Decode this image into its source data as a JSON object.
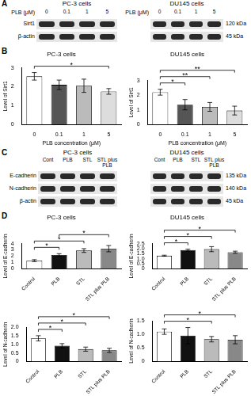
{
  "panel_labels": [
    "A",
    "B",
    "C",
    "D"
  ],
  "blots": [
    {
      "groups": [
        {
          "title": "PC-3 cells",
          "lane_header": "PLB (μM)",
          "lanes": [
            "0",
            "0.1",
            "1",
            "5"
          ],
          "rows": [
            "Sirt1",
            "β-actin"
          ]
        },
        {
          "title": "DU145 cells",
          "lane_header": "PLB (μM)",
          "lanes": [
            "0",
            "0.1",
            "1",
            "5"
          ],
          "sizes": [
            "120 kDa",
            "45 kDa"
          ]
        }
      ]
    },
    {
      "groups": [
        {
          "title": "PC-3 cells",
          "lanes": [
            "Cont",
            "PLB",
            "STL",
            "STL plus PLB"
          ],
          "rows": [
            "E-cadherin",
            "N-cadherin",
            "β-actin"
          ]
        },
        {
          "title": "DU145 cells",
          "lanes": [
            "Cont",
            "PLB",
            "STL",
            "STL plus PLB"
          ],
          "sizes": [
            "135 kDa",
            "140 kDa",
            "45 kDa"
          ]
        }
      ]
    }
  ],
  "chart_data": [
    {
      "type": "bar",
      "title": "PC-3 cells",
      "x_label": "PLB concentration (μM)",
      "y_label": "Level of Sirt1",
      "categories": [
        "0",
        "0.1",
        "1",
        "5"
      ],
      "values": [
        2.55,
        2.1,
        2.05,
        1.75
      ],
      "errors": [
        0.2,
        0.25,
        0.35,
        0.15
      ],
      "colors": [
        "#ffffff",
        "#555555",
        "#bbbbbb",
        "#dddddd"
      ],
      "ylim": [
        0,
        3
      ],
      "yticks": [
        0,
        1,
        2,
        3
      ],
      "significance": [
        {
          "pair": [
            0,
            3
          ],
          "label": "*"
        }
      ]
    },
    {
      "type": "bar",
      "title": "DU145 cells",
      "x_label": "PLB concentration (μM)",
      "y_label": "Level of Sirt1",
      "categories": [
        "0",
        "0.1",
        "1",
        "5"
      ],
      "values": [
        2.2,
        1.35,
        1.2,
        0.95
      ],
      "errors": [
        0.2,
        0.35,
        0.3,
        0.3
      ],
      "colors": [
        "#ffffff",
        "#555555",
        "#bbbbbb",
        "#dddddd"
      ],
      "ylim": [
        0,
        3
      ],
      "yticks": [
        0,
        1,
        2,
        3
      ],
      "significance": [
        {
          "pair": [
            0,
            1
          ],
          "label": "*"
        },
        {
          "pair": [
            0,
            2
          ],
          "label": "**"
        },
        {
          "pair": [
            0,
            3
          ],
          "label": "**"
        }
      ]
    },
    {
      "type": "bar",
      "title": "PC-3 cells",
      "y_label": "Level of E-cadherin",
      "categories": [
        "Control",
        "PLB",
        "STL",
        "STL plus PLB"
      ],
      "values": [
        1.3,
        2.2,
        2.9,
        3.2
      ],
      "errors": [
        0.15,
        0.2,
        0.3,
        0.5
      ],
      "colors": [
        "#ffffff",
        "#111111",
        "#bbbbbb",
        "#888888"
      ],
      "ylim": [
        0,
        4
      ],
      "yticks": [
        0,
        1,
        2,
        3,
        4
      ],
      "significance": [
        {
          "pair": [
            0,
            1
          ],
          "label": "*"
        },
        {
          "pair": [
            0,
            2
          ],
          "label": "*"
        },
        {
          "pair": [
            1,
            3
          ],
          "label": "*"
        }
      ]
    },
    {
      "type": "bar",
      "title": "DU145 cells",
      "y_label": "Level of E-cadherin",
      "categories": [
        "Control",
        "PLB",
        "STL",
        "STL plus PLB"
      ],
      "values": [
        1.3,
        1.85,
        1.95,
        1.65
      ],
      "errors": [
        0.05,
        0.1,
        0.25,
        0.1
      ],
      "colors": [
        "#ffffff",
        "#111111",
        "#bbbbbb",
        "#888888"
      ],
      "ylim": [
        0,
        2.5
      ],
      "yticks": [
        0,
        0.5,
        {
          "value": 1,
          "label": "1.0"
        },
        1.5,
        {
          "value": 2,
          "label": "2.0"
        },
        2.5
      ],
      "significance": [
        {
          "pair": [
            0,
            1
          ],
          "label": "*"
        },
        {
          "pair": [
            0,
            2
          ],
          "label": "*"
        },
        {
          "pair": [
            0,
            3
          ],
          "label": "*"
        }
      ]
    },
    {
      "type": "bar",
      "y_label": "Level of N-cadherin",
      "categories": [
        "Control",
        "PLB",
        "STL",
        "STL plus PLB"
      ],
      "values": [
        1.35,
        0.92,
        0.72,
        0.65
      ],
      "errors": [
        0.15,
        0.12,
        0.12,
        0.12
      ],
      "colors": [
        "#ffffff",
        "#111111",
        "#bbbbbb",
        "#888888"
      ],
      "ylim": [
        0,
        2
      ],
      "yticks": [
        0,
        0.5,
        {
          "value": 1,
          "label": "1.0"
        },
        1.5,
        {
          "value": 2,
          "label": "2.0"
        }
      ],
      "significance": [
        {
          "pair": [
            0,
            1
          ],
          "label": "*"
        },
        {
          "pair": [
            0,
            2
          ],
          "label": "*"
        },
        {
          "pair": [
            0,
            3
          ],
          "label": "*"
        }
      ]
    },
    {
      "type": "bar",
      "y_label": "Level of N-cadherin",
      "categories": [
        "Control",
        "PLB",
        "STL",
        "STL plus PLB"
      ],
      "values": [
        1.1,
        0.95,
        0.82,
        0.8
      ],
      "errors": [
        0.1,
        0.3,
        0.1,
        0.15
      ],
      "colors": [
        "#ffffff",
        "#111111",
        "#bbbbbb",
        "#888888"
      ],
      "ylim": [
        0,
        1.5
      ],
      "yticks": [
        0,
        0.5,
        {
          "value": 1,
          "label": "1.0"
        },
        1.5
      ],
      "significance": [
        {
          "pair": [
            0,
            2
          ],
          "label": "*"
        },
        {
          "pair": [
            0,
            3
          ],
          "label": "*"
        }
      ]
    }
  ]
}
